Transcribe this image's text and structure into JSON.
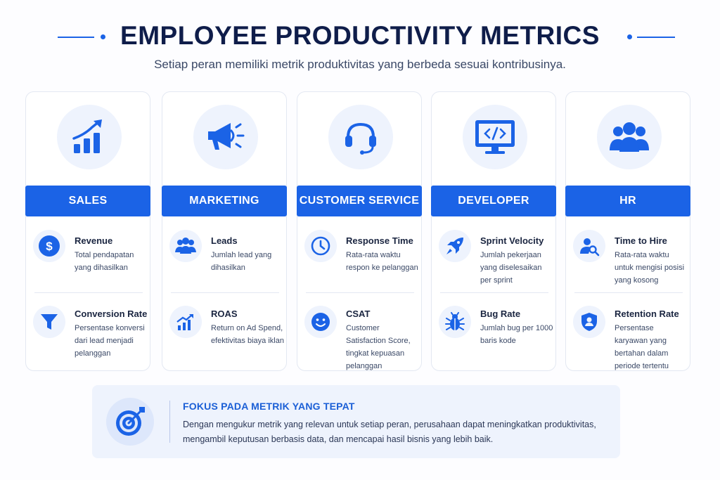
{
  "header": {
    "title": "EMPLOYEE PRODUCTIVITY METRICS",
    "subtitle": "Setiap peran memiliki metrik produktivitas yang berbeda sesuai kontribusinya."
  },
  "colors": {
    "accent": "#1b63e6",
    "title": "#0f1d4a",
    "soft_bg": "#eef3fd"
  },
  "roles": [
    {
      "name": "SALES",
      "icon": "growth-chart-icon",
      "metrics": [
        {
          "title": "Revenue",
          "description": "Total pendapatan yang dihasilkan",
          "icon": "dollar-icon"
        },
        {
          "title": "Conversion Rate",
          "description": "Persentase konversi dari lead menjadi pelanggan",
          "icon": "funnel-icon"
        }
      ]
    },
    {
      "name": "MARKETING",
      "icon": "megaphone-icon",
      "metrics": [
        {
          "title": "Leads",
          "description": "Jumlah lead yang dihasilkan",
          "icon": "people-icon"
        },
        {
          "title": "ROAS",
          "description": "Return on Ad Spend, efektivitas biaya iklan",
          "icon": "growth-chart-icon"
        }
      ]
    },
    {
      "name": "CUSTOMER SERVICE",
      "icon": "headset-icon",
      "metrics": [
        {
          "title": "Response Time",
          "description": "Rata-rata waktu respon ke pelanggan",
          "icon": "clock-icon"
        },
        {
          "title": "CSAT",
          "description": "Customer Satisfaction Score, tingkat kepuasan pelanggan",
          "icon": "smiley-icon"
        }
      ]
    },
    {
      "name": "DEVELOPER",
      "icon": "code-monitor-icon",
      "metrics": [
        {
          "title": "Sprint Velocity",
          "description": "Jumlah pekerjaan yang diselesaikan per sprint",
          "icon": "rocket-icon"
        },
        {
          "title": "Bug Rate",
          "description": "Jumlah bug per 1000 baris kode",
          "icon": "bug-icon"
        }
      ]
    },
    {
      "name": "HR",
      "icon": "team-icon",
      "metrics": [
        {
          "title": "Time to Hire",
          "description": "Rata-rata waktu untuk mengisi posisi yang kosong",
          "icon": "user-search-icon"
        },
        {
          "title": "Retention Rate",
          "description": "Persentase karyawan yang bertahan dalam periode tertentu",
          "icon": "shield-user-icon"
        }
      ]
    }
  ],
  "footer": {
    "icon": "target-icon",
    "title": "FOKUS PADA METRIK YANG TEPAT",
    "text": "Dengan mengukur metrik yang relevan untuk setiap peran, perusahaan dapat meningkatkan produktivitas, mengambil keputusan berbasis data, dan mencapai hasil bisnis yang lebih baik."
  }
}
